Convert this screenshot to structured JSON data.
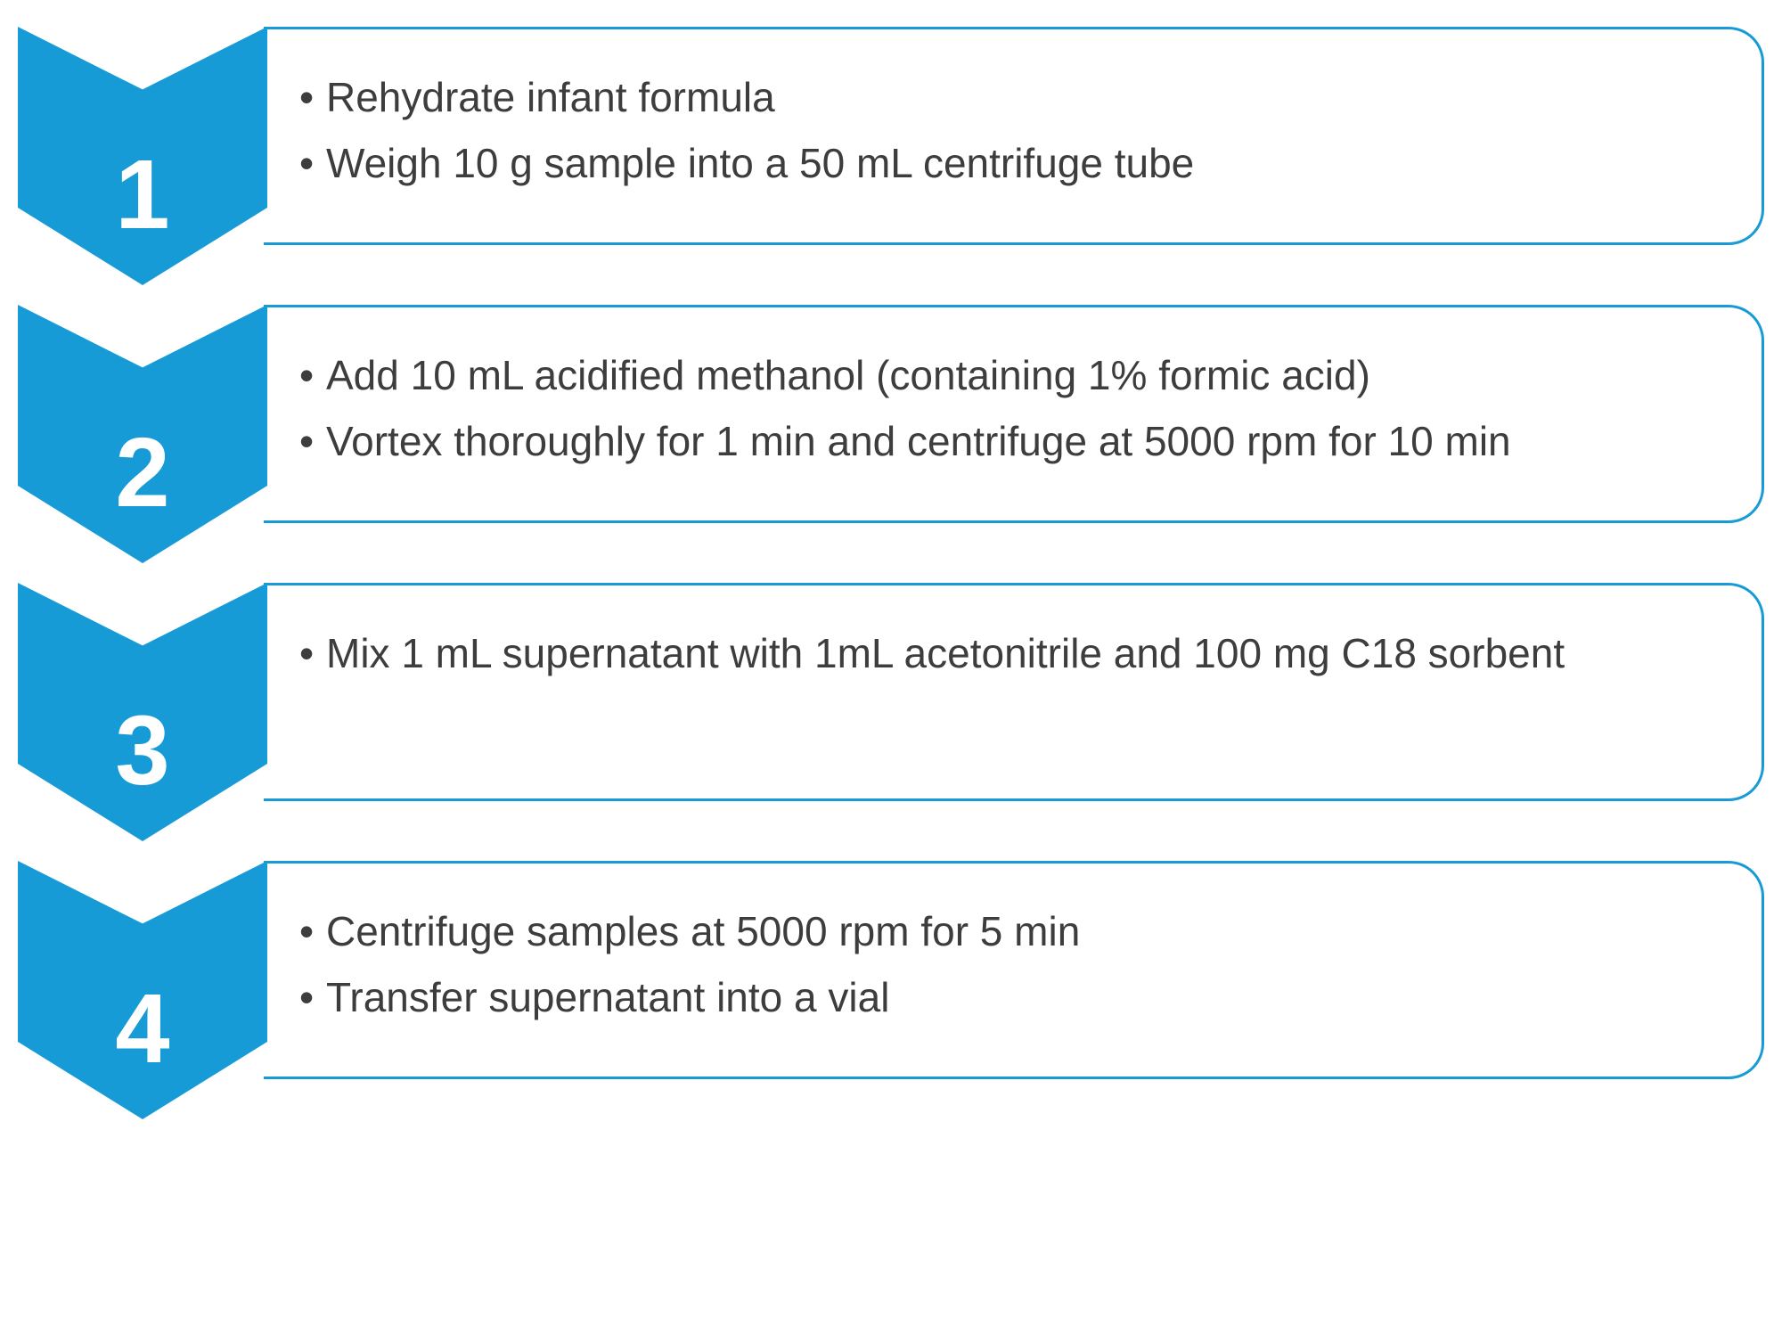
{
  "type": "flowchart",
  "layout": "vertical-steps",
  "chevron_color": "#179bd7",
  "border_color": "#179bd7",
  "background_color": "#ffffff",
  "text_color": "#3d3d3d",
  "step_number_color": "#ffffff",
  "step_number_fontsize": 110,
  "bullet_fontsize": 46,
  "border_radius": 40,
  "steps": [
    {
      "number": "1",
      "bullets": [
        "Rehydrate infant formula",
        "Weigh 10 g sample into a 50 mL centrifuge tube"
      ]
    },
    {
      "number": "2",
      "bullets": [
        "Add 10 mL acidified methanol (containing 1% formic acid)",
        "Vortex thoroughly for 1 min and centrifuge at 5000 rpm for 10 min"
      ]
    },
    {
      "number": "3",
      "bullets": [
        "Mix 1 mL supernatant with 1mL acetonitrile and 100 mg C18 sorbent"
      ]
    },
    {
      "number": "4",
      "bullets": [
        "Centrifuge samples at 5000 rpm for 5 min",
        "Transfer supernatant into a vial"
      ]
    }
  ]
}
